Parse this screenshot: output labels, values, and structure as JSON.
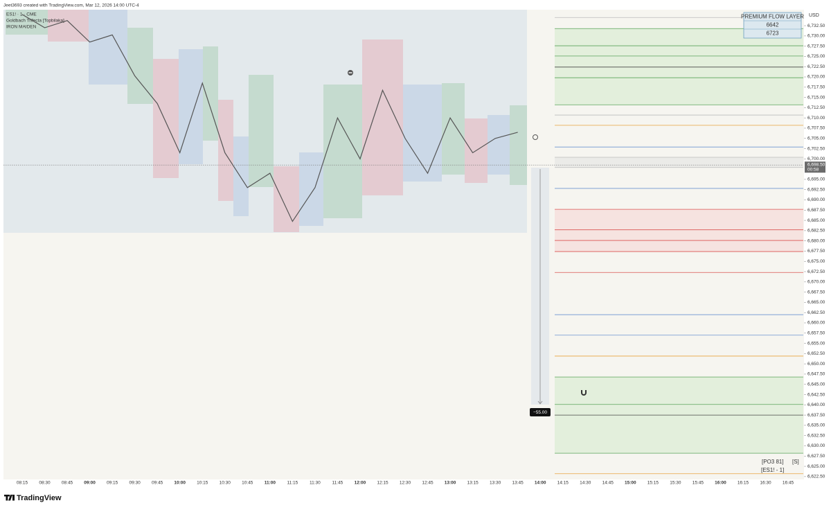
{
  "header": {
    "title": "Jeet3693 created with TradingView.com, Mar 12, 2026 14:00 UTC-4"
  },
  "legend": [
    "ES1! · 1 · CME",
    "Goldbach Trifecta [Topbilaka]",
    "IRON MAIDEN"
  ],
  "table": {
    "title": "PREMIUM FLOW LAYER",
    "rows": [
      "6642",
      "6723"
    ]
  },
  "labels": {
    "currency": "USD",
    "measure": "−55.00",
    "po3": "[PO3 81]",
    "s": "[S]",
    "symbol": "[ES1! - 1]",
    "brand": "TradingView"
  },
  "chart_data": {
    "type": "line",
    "x": [
      "08:15",
      "08:30",
      "08:45",
      "09:00",
      "09:15",
      "09:30",
      "09:45",
      "10:00",
      "10:15",
      "10:30",
      "10:45",
      "11:00",
      "11:15",
      "11:30",
      "11:45",
      "12:00",
      "12:15",
      "12:30",
      "12:45",
      "13:00",
      "13:15",
      "13:30",
      "13:45",
      "14:00",
      "14:15",
      "14:30",
      "14:45",
      "15:00",
      "15:15",
      "15:30",
      "15:45",
      "16:00",
      "16:15",
      "16:30",
      "16:45"
    ],
    "closes": [
      6735.25,
      6732,
      6733.75,
      6728.5,
      6730.25,
      6720.25,
      6713.5,
      6701.5,
      6718.5,
      6701.5,
      6693,
      6696.5,
      6684.75,
      6693,
      6710,
      6700,
      6716.75,
      6705,
      6696.5,
      6710,
      6701.5,
      6705,
      6706.5,
      null,
      null,
      null,
      null,
      null,
      null,
      null,
      null,
      null,
      null,
      null,
      null
    ],
    "color": "#555555",
    "last_price": {
      "value": 6698.5,
      "label": "6,698.50"
    },
    "countdown": "00:58",
    "ylim": [
      6621.8,
      6736.4
    ],
    "yticks": [
      {
        "value": 6622.5,
        "label": "6,622.50"
      },
      {
        "value": 6625,
        "label": "6,625.00"
      },
      {
        "value": 6627.5,
        "label": "6,627.50"
      },
      {
        "value": 6630,
        "label": "6,630.00"
      },
      {
        "value": 6632.5,
        "label": "6,632.50"
      },
      {
        "value": 6635,
        "label": "6,635.00"
      },
      {
        "value": 6637.5,
        "label": "6,637.50"
      },
      {
        "value": 6640,
        "label": "6,640.00"
      },
      {
        "value": 6642.5,
        "label": "6,642.50"
      },
      {
        "value": 6645,
        "label": "6,645.00"
      },
      {
        "value": 6647.5,
        "label": "6,647.50"
      },
      {
        "value": 6650,
        "label": "6,650.00"
      },
      {
        "value": 6652.5,
        "label": "6,652.50"
      },
      {
        "value": 6655,
        "label": "6,655.00"
      },
      {
        "value": 6657.5,
        "label": "6,657.50"
      },
      {
        "value": 6660,
        "label": "6,660.00"
      },
      {
        "value": 6662.5,
        "label": "6,662.50"
      },
      {
        "value": 6665,
        "label": "6,665.00"
      },
      {
        "value": 6667.5,
        "label": "6,667.50"
      },
      {
        "value": 6670,
        "label": "6,670.00"
      },
      {
        "value": 6672.5,
        "label": "6,672.50"
      },
      {
        "value": 6675,
        "label": "6,675.00"
      },
      {
        "value": 6677.5,
        "label": "6,677.50"
      },
      {
        "value": 6680,
        "label": "6,680.00"
      },
      {
        "value": 6682.5,
        "label": "6,682.50"
      },
      {
        "value": 6685,
        "label": "6,685.00"
      },
      {
        "value": 6687.5,
        "label": "6,687.50"
      },
      {
        "value": 6690,
        "label": "6,690.00"
      },
      {
        "value": 6692.5,
        "label": "6,692.50"
      },
      {
        "value": 6695,
        "label": "6,695.00"
      },
      {
        "value": 6700,
        "label": "6,700.00"
      },
      {
        "value": 6702.5,
        "label": "6,702.50"
      },
      {
        "value": 6705,
        "label": "6,705.00"
      },
      {
        "value": 6707.5,
        "label": "6,707.50"
      },
      {
        "value": 6710,
        "label": "6,710.00"
      },
      {
        "value": 6712.5,
        "label": "6,712.50"
      },
      {
        "value": 6715,
        "label": "6,715.00"
      },
      {
        "value": 6717.5,
        "label": "6,717.50"
      },
      {
        "value": 6720,
        "label": "6,720.00"
      },
      {
        "value": 6722.5,
        "label": "6,722.50"
      },
      {
        "value": 6725,
        "label": "6,725.00"
      },
      {
        "value": 6727.5,
        "label": "6,727.50"
      },
      {
        "value": 6730,
        "label": "6,730.00"
      },
      {
        "value": 6732.5,
        "label": "6,732.50"
      }
    ],
    "zones": [
      {
        "from": 6713.2,
        "to": 6731.8,
        "color": "#e3efdc"
      },
      {
        "from": 6697.9,
        "to": 6700.4,
        "color": "#ebebe8"
      },
      {
        "from": 6677.4,
        "to": 6687.7,
        "color": "#f6e3e0"
      },
      {
        "from": 6628.2,
        "to": 6646.8,
        "color": "#e3efdc"
      }
    ],
    "levels": [
      {
        "value": 6734.5,
        "color": "#bbbbbb"
      },
      {
        "value": 6731.8,
        "color": "#5aa35a"
      },
      {
        "value": 6727.6,
        "color": "#5aa35a"
      },
      {
        "value": 6725.1,
        "color": "#5aa35a"
      },
      {
        "value": 6722.4,
        "color": "#444444"
      },
      {
        "value": 6719.8,
        "color": "#5aa35a"
      },
      {
        "value": 6713.2,
        "color": "#5aa35a"
      },
      {
        "value": 6710.7,
        "color": "#bbbbbb"
      },
      {
        "value": 6708.2,
        "color": "#e8a33c"
      },
      {
        "value": 6702.9,
        "color": "#6e95cf"
      },
      {
        "value": 6700.4,
        "color": "#bbbbbb"
      },
      {
        "value": 6697.9,
        "color": "#bbbbbb"
      },
      {
        "value": 6692.8,
        "color": "#6e95cf"
      },
      {
        "value": 6687.7,
        "color": "#d9534f"
      },
      {
        "value": 6682.7,
        "color": "#d9534f"
      },
      {
        "value": 6680.1,
        "color": "#d9534f"
      },
      {
        "value": 6677.4,
        "color": "#d9534f"
      },
      {
        "value": 6672.3,
        "color": "#d9534f"
      },
      {
        "value": 6662,
        "color": "#6e95cf"
      },
      {
        "value": 6657,
        "color": "#6e95cf"
      },
      {
        "value": 6651.9,
        "color": "#e8a33c"
      },
      {
        "value": 6646.8,
        "color": "#5aa35a"
      },
      {
        "value": 6640.1,
        "color": "#5aa35a"
      },
      {
        "value": 6637.5,
        "color": "#444444"
      },
      {
        "value": 6628.2,
        "color": "#5aa35a"
      },
      {
        "value": 6623.2,
        "color": "#e8a33c"
      }
    ]
  }
}
